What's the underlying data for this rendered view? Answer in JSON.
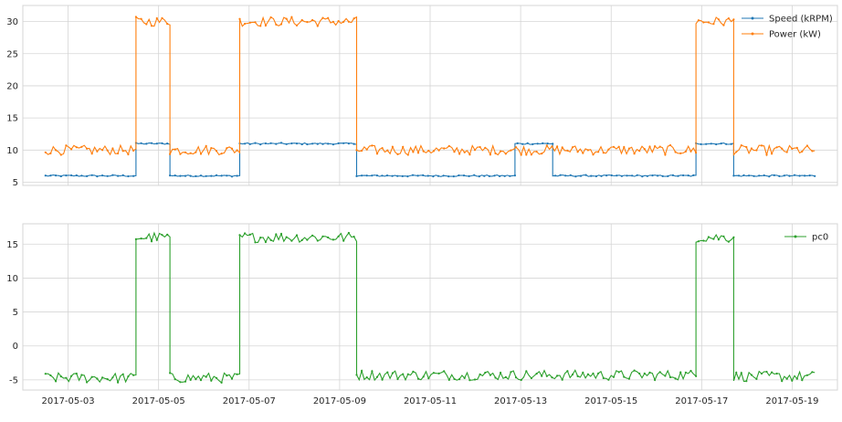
{
  "chart_data": [
    {
      "type": "line",
      "title": "",
      "xlabel": "",
      "ylabel": "",
      "x_range": [
        "2017-05-02",
        "2017-05-20"
      ],
      "ylim": [
        4.5,
        32.5
      ],
      "y_ticks": [
        5,
        10,
        15,
        20,
        25,
        30
      ],
      "grid": true,
      "legend": "top-right",
      "series": [
        {
          "name": "Speed (kRPM)",
          "color": "#1f77b4",
          "levels": [
            {
              "start": "2017-05-02T12:00",
              "end": "2017-05-04T12:00",
              "value": 6.0
            },
            {
              "start": "2017-05-04T12:00",
              "end": "2017-05-05T06:00",
              "value": 11.0
            },
            {
              "start": "2017-05-05T06:00",
              "end": "2017-05-06T19:00",
              "value": 6.0
            },
            {
              "start": "2017-05-06T19:00",
              "end": "2017-05-09T09:00",
              "value": 11.0
            },
            {
              "start": "2017-05-09T09:00",
              "end": "2017-05-12T21:00",
              "value": 6.0
            },
            {
              "start": "2017-05-12T21:00",
              "end": "2017-05-13T17:00",
              "value": 11.0
            },
            {
              "start": "2017-05-13T17:00",
              "end": "2017-05-16T21:00",
              "value": 6.0
            },
            {
              "start": "2017-05-16T21:00",
              "end": "2017-05-17T17:00",
              "value": 11.0
            },
            {
              "start": "2017-05-17T17:00",
              "end": "2017-05-19T12:00",
              "value": 6.0
            }
          ]
        },
        {
          "name": "Power (kW)",
          "color": "#ff7f0e",
          "levels": [
            {
              "start": "2017-05-02T12:00",
              "end": "2017-05-04T12:00",
              "value": 10.0
            },
            {
              "start": "2017-05-04T12:00",
              "end": "2017-05-05T06:00",
              "value": 30.0
            },
            {
              "start": "2017-05-05T06:00",
              "end": "2017-05-06T19:00",
              "value": 10.0
            },
            {
              "start": "2017-05-06T19:00",
              "end": "2017-05-09T09:00",
              "value": 30.0
            },
            {
              "start": "2017-05-09T09:00",
              "end": "2017-05-16T21:00",
              "value": 10.0
            },
            {
              "start": "2017-05-16T21:00",
              "end": "2017-05-17T17:00",
              "value": 30.0
            },
            {
              "start": "2017-05-17T17:00",
              "end": "2017-05-19T12:00",
              "value": 10.0
            }
          ]
        }
      ]
    },
    {
      "type": "line",
      "title": "",
      "xlabel": "",
      "ylabel": "",
      "x_range": [
        "2017-05-02",
        "2017-05-20"
      ],
      "ylim": [
        -6.5,
        18.0
      ],
      "y_ticks": [
        -5,
        0,
        5,
        10,
        15
      ],
      "x_ticks": [
        "2017-05-03",
        "2017-05-05",
        "2017-05-07",
        "2017-05-09",
        "2017-05-11",
        "2017-05-13",
        "2017-05-15",
        "2017-05-17",
        "2017-05-19"
      ],
      "grid": true,
      "legend": "top-right",
      "series": [
        {
          "name": "pc0",
          "color": "#2ca02c",
          "levels": [
            {
              "start": "2017-05-02T12:00",
              "end": "2017-05-04T12:00",
              "value": -4.7
            },
            {
              "start": "2017-05-04T12:00",
              "end": "2017-05-05T06:00",
              "value": 16.0
            },
            {
              "start": "2017-05-05T06:00",
              "end": "2017-05-06T19:00",
              "value": -4.7
            },
            {
              "start": "2017-05-06T19:00",
              "end": "2017-05-09T09:00",
              "value": 16.0
            },
            {
              "start": "2017-05-09T09:00",
              "end": "2017-05-16T21:00",
              "value": -4.3
            },
            {
              "start": "2017-05-16T21:00",
              "end": "2017-05-17T17:00",
              "value": 16.0
            },
            {
              "start": "2017-05-17T17:00",
              "end": "2017-05-19T12:00",
              "value": -4.5
            }
          ]
        }
      ]
    }
  ]
}
